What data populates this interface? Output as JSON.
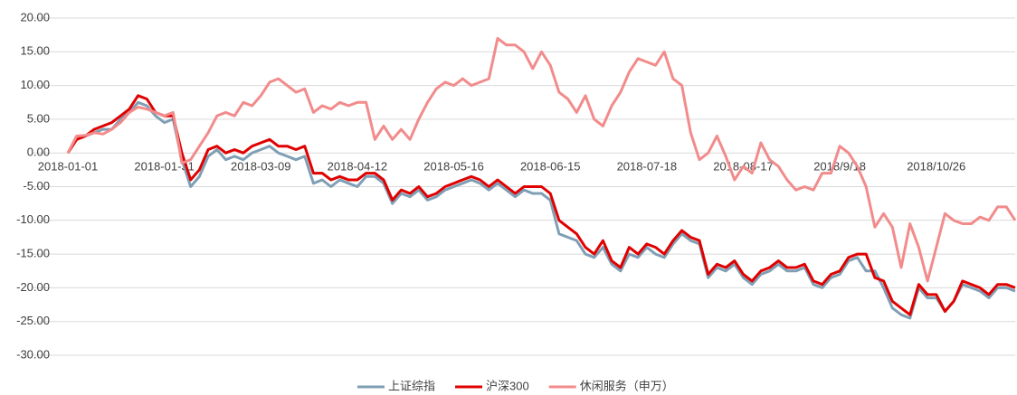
{
  "chart_data": {
    "type": "line",
    "categories": [
      "2018-01-01",
      null,
      null,
      null,
      null,
      null,
      null,
      null,
      null,
      null,
      null,
      "2018-01-31",
      null,
      null,
      null,
      null,
      null,
      null,
      null,
      null,
      null,
      null,
      "2018-03-09",
      null,
      null,
      null,
      null,
      null,
      null,
      null,
      null,
      null,
      null,
      "2018-04-12",
      null,
      null,
      null,
      null,
      null,
      null,
      null,
      null,
      null,
      null,
      "2018-05-16",
      null,
      null,
      null,
      null,
      null,
      null,
      null,
      null,
      null,
      null,
      "2018-06-15",
      null,
      null,
      null,
      null,
      null,
      null,
      null,
      null,
      null,
      null,
      "2018-07-18",
      null,
      null,
      null,
      null,
      null,
      null,
      null,
      null,
      null,
      null,
      "2018-08-17",
      null,
      null,
      null,
      null,
      null,
      null,
      null,
      null,
      null,
      null,
      "2018/9/18",
      null,
      null,
      null,
      null,
      null,
      null,
      null,
      null,
      null,
      null,
      "2018/10/26",
      null,
      null,
      null,
      null,
      null,
      null,
      null,
      null,
      null
    ],
    "series": [
      {
        "name": "上证综指",
        "color": "#7f9fb5",
        "values": [
          0,
          2,
          2.5,
          3,
          3.5,
          3.5,
          5,
          6,
          7.5,
          7,
          5.5,
          4.5,
          5,
          -1,
          -5,
          -3.5,
          -0.5,
          0.5,
          -1,
          -0.5,
          -1,
          0,
          0.5,
          1,
          0,
          -0.5,
          -1,
          -0.5,
          -4.5,
          -4,
          -5,
          -4,
          -4.5,
          -5,
          -3.5,
          -3.5,
          -4.5,
          -7.5,
          -6,
          -6.5,
          -5.5,
          -7,
          -6.5,
          -5.5,
          -5,
          -4.5,
          -4,
          -4.5,
          -5.5,
          -4.5,
          -5.5,
          -6.5,
          -5.5,
          -6,
          -6,
          -7,
          -12,
          -12.5,
          -13,
          -15,
          -15.5,
          -14,
          -16.5,
          -17.5,
          -15,
          -15.5,
          -14,
          -15,
          -15.5,
          -13.5,
          -12,
          -13,
          -13.5,
          -18.5,
          -17,
          -17.5,
          -16.5,
          -18.5,
          -19.5,
          -18,
          -17.5,
          -16.5,
          -17.5,
          -17.5,
          -17,
          -19.5,
          -20,
          -18.5,
          -18,
          -16,
          -15.5,
          -17.5,
          -17.5,
          -20,
          -23,
          -24,
          -24.5,
          -20,
          -21.5,
          -21.5,
          -23.5,
          -22,
          -19.5,
          -20,
          -20.5,
          -21.5,
          -20,
          -20,
          -20.5
        ]
      },
      {
        "name": "沪深300",
        "color": "#e00000",
        "values": [
          0,
          2,
          2.5,
          3.5,
          4,
          4.5,
          5.5,
          6.5,
          8.5,
          8,
          6,
          5.5,
          5.5,
          0,
          -4,
          -2.5,
          0.5,
          1,
          0,
          0.5,
          0,
          1,
          1.5,
          2,
          1,
          1,
          0.5,
          1,
          -3,
          -3,
          -4,
          -3.5,
          -4,
          -4,
          -3,
          -3,
          -4,
          -7,
          -5.5,
          -6,
          -5,
          -6.5,
          -6,
          -5,
          -4.5,
          -4,
          -3.5,
          -4,
          -5,
          -4,
          -5,
          -6,
          -5,
          -5,
          -5,
          -6,
          -10,
          -11,
          -12,
          -14,
          -15,
          -13,
          -16,
          -17,
          -14,
          -15,
          -13.5,
          -14,
          -15,
          -13,
          -11.5,
          -12.5,
          -13,
          -18,
          -16.5,
          -17,
          -16,
          -18,
          -19,
          -17.5,
          -17,
          -16,
          -17,
          -17,
          -16.5,
          -19,
          -19.5,
          -18,
          -17.5,
          -15.5,
          -15,
          -15,
          -18.5,
          -19,
          -22,
          -23,
          -24,
          -19.5,
          -21,
          -21,
          -23.5,
          -22,
          -19,
          -19.5,
          -20,
          -21,
          -19.5,
          -19.5,
          -20
        ]
      },
      {
        "name": "休闲服务（申万）",
        "color": "#f28b8b",
        "values": [
          0,
          2.5,
          2.6,
          3,
          2.8,
          3.5,
          4.5,
          6,
          6.8,
          6.5,
          6,
          5.5,
          6,
          -1.5,
          -1,
          1,
          3,
          5.5,
          6,
          5.5,
          7.5,
          7,
          8.5,
          10.5,
          11,
          10,
          9,
          9.5,
          6,
          7,
          6.5,
          7.5,
          7,
          7.5,
          7.5,
          2,
          4,
          2,
          3.5,
          2,
          5,
          7.5,
          9.5,
          10.5,
          10,
          11,
          10,
          10.5,
          11,
          17,
          16,
          16,
          15,
          12.5,
          15,
          13,
          9,
          8,
          6,
          8.5,
          5,
          4,
          7,
          9,
          12,
          14,
          13.5,
          13,
          15,
          11,
          10,
          3,
          -1,
          0,
          2.5,
          -0.5,
          -4,
          -2,
          -3,
          1.5,
          -1,
          -2,
          -4,
          -5.5,
          -5,
          -5.5,
          -3,
          -3,
          1,
          0,
          -2,
          -5,
          -11,
          -9,
          -11,
          -17,
          -10.5,
          -14,
          -19,
          -14,
          -9,
          -10,
          -10.5,
          -10.5,
          -9.5,
          -10,
          -8,
          -8,
          -10
        ]
      }
    ],
    "ylim": [
      -30,
      20
    ],
    "yticks": [
      {
        "value": -30,
        "label": "-30.00"
      },
      {
        "value": -25,
        "label": "-25.00"
      },
      {
        "value": -20,
        "label": "-20.00"
      },
      {
        "value": -15,
        "label": "-15.00"
      },
      {
        "value": -10,
        "label": "-10.00"
      },
      {
        "value": -5,
        "label": "-5.00"
      },
      {
        "value": 0,
        "label": "0.00"
      },
      {
        "value": 5,
        "label": "5.00"
      },
      {
        "value": 10,
        "label": "10.00"
      },
      {
        "value": 15,
        "label": "15.00"
      },
      {
        "value": 20,
        "label": "20.00"
      }
    ],
    "grid": true,
    "legend": "bottom"
  }
}
